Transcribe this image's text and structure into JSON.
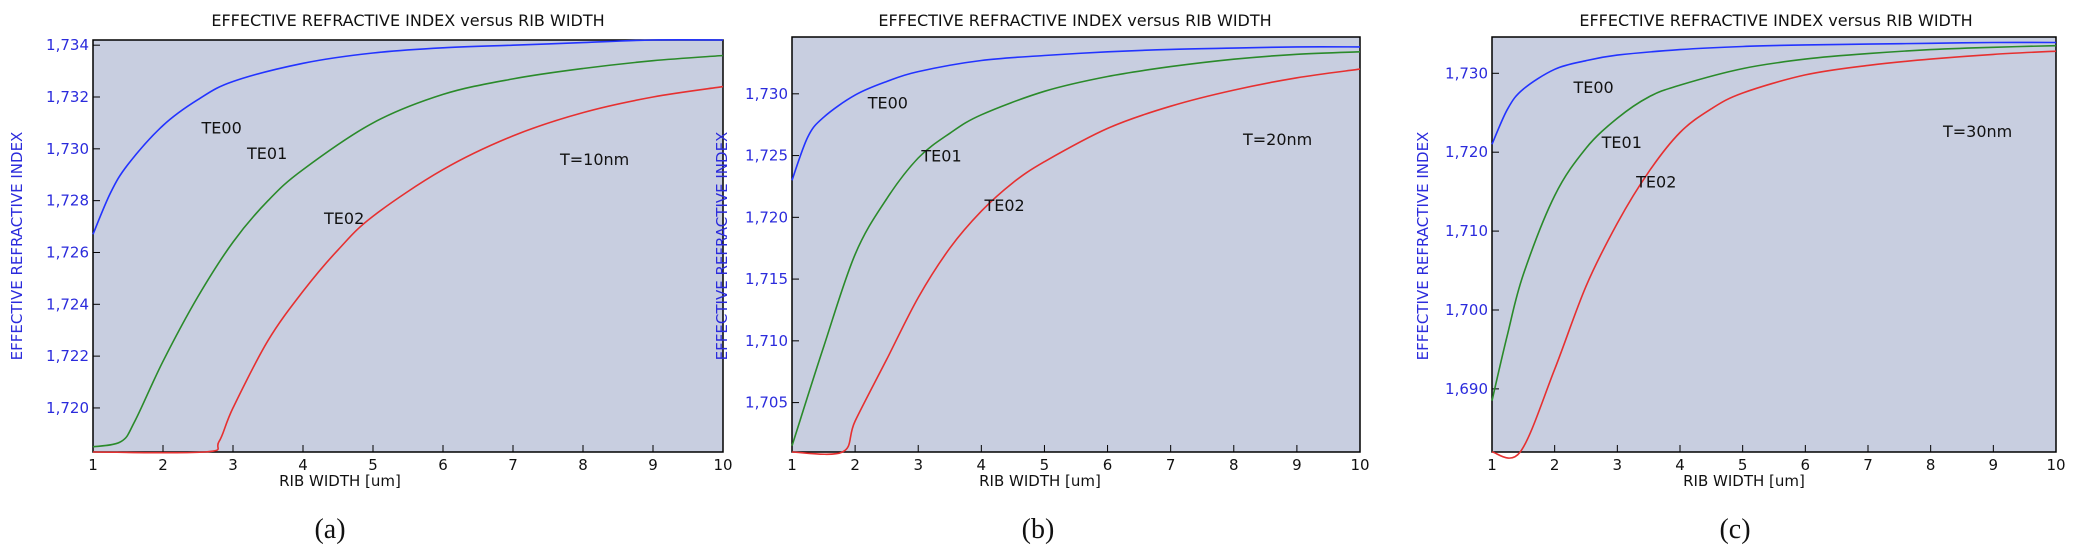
{
  "figure": {
    "captions": [
      "(a)",
      "(b)",
      "(c)"
    ]
  },
  "chart_data": [
    {
      "type": "line",
      "title": "EFFECTIVE REFRACTIVE INDEX versus RIB WIDTH",
      "xlabel": "RIB WIDTH [um]",
      "ylabel": "EFFECTIVE REFRACTIVE INDEX",
      "annotation": "T=10nm",
      "xlim": [
        1,
        10
      ],
      "ylim": [
        1.7183,
        1.7342
      ],
      "yticks": [
        1.72,
        1.722,
        1.724,
        1.726,
        1.728,
        1.73,
        1.732,
        1.734
      ],
      "ytick_labels": [
        "1,720",
        "1,722",
        "1,724",
        "1,726",
        "1,728",
        "1,730",
        "1,732",
        "1,734"
      ],
      "xticks": [
        "1",
        "2",
        "3",
        "4",
        "5",
        "6",
        "7",
        "8",
        "9",
        "10"
      ],
      "grid": false,
      "legend": "none",
      "series": [
        {
          "name": "TE00",
          "color": "#2233ff",
          "label_at": [
            2.55,
            1.7306
          ],
          "x": [
            1,
            1.25,
            1.5,
            2,
            2.5,
            3,
            4,
            5,
            6,
            7,
            8,
            9,
            10
          ],
          "y": [
            1.7267,
            1.7283,
            1.7294,
            1.7309,
            1.7319,
            1.7326,
            1.7333,
            1.7337,
            1.7339,
            1.734,
            1.7341,
            1.7342,
            1.7342
          ]
        },
        {
          "name": "TE01",
          "color": "#2a8a2a",
          "label_at": [
            3.2,
            1.7296
          ],
          "x": [
            1,
            1.4,
            1.6,
            2,
            2.5,
            3,
            3.5,
            4,
            5,
            6,
            7,
            8,
            9,
            10
          ],
          "y": [
            1.7185,
            1.7187,
            1.7195,
            1.7218,
            1.7243,
            1.7264,
            1.728,
            1.7292,
            1.731,
            1.7321,
            1.7327,
            1.7331,
            1.7334,
            1.7336
          ]
        },
        {
          "name": "TE02",
          "color": "#e63030",
          "label_at": [
            4.3,
            1.7271
          ],
          "x": [
            1,
            2.6,
            2.8,
            3,
            3.5,
            4,
            4.5,
            5,
            6,
            7,
            8,
            9,
            10
          ],
          "y": [
            1.7183,
            1.7183,
            1.7187,
            1.72,
            1.7226,
            1.7245,
            1.7261,
            1.7274,
            1.7292,
            1.7305,
            1.7314,
            1.732,
            1.7324
          ]
        }
      ]
    },
    {
      "type": "line",
      "title": "EFFECTIVE REFRACTIVE INDEX versus RIB WIDTH",
      "xlabel": "RIB WIDTH [um]",
      "ylabel": "EFFECTIVE REFRACTIVE INDEX",
      "annotation": "T=20nm",
      "xlim": [
        1,
        10
      ],
      "ylim": [
        1.701,
        1.7346
      ],
      "yticks": [
        1.705,
        1.71,
        1.715,
        1.72,
        1.725,
        1.73
      ],
      "ytick_labels": [
        "1,705",
        "1,710",
        "1,715",
        "1,720",
        "1,725",
        "1,730"
      ],
      "xticks": [
        "1",
        "2",
        "3",
        "4",
        "5",
        "6",
        "7",
        "8",
        "9",
        "10"
      ],
      "grid": false,
      "legend": "none",
      "series": [
        {
          "name": "TE00",
          "color": "#2233ff",
          "label_at": [
            2.2,
            1.7288
          ],
          "x": [
            1,
            1.25,
            1.5,
            2,
            2.5,
            3,
            4,
            5,
            6,
            7,
            8,
            9,
            10
          ],
          "y": [
            1.723,
            1.7265,
            1.7281,
            1.7299,
            1.731,
            1.7318,
            1.7327,
            1.7331,
            1.7334,
            1.7336,
            1.7337,
            1.7338,
            1.7338
          ]
        },
        {
          "name": "TE01",
          "color": "#2a8a2a",
          "label_at": [
            3.05,
            1.7245
          ],
          "x": [
            1,
            1.5,
            2,
            2.5,
            3,
            3.5,
            4,
            5,
            6,
            7,
            8,
            9,
            10
          ],
          "y": [
            1.7015,
            1.7095,
            1.717,
            1.7215,
            1.7248,
            1.7268,
            1.7283,
            1.7302,
            1.7314,
            1.7322,
            1.7328,
            1.7332,
            1.7334
          ]
        },
        {
          "name": "TE02",
          "color": "#e63030",
          "label_at": [
            4.05,
            1.7205
          ],
          "x": [
            1,
            1.8,
            2,
            2.5,
            3,
            3.5,
            4,
            4.5,
            5,
            6,
            7,
            8,
            9,
            10
          ],
          "y": [
            1.701,
            1.701,
            1.7035,
            1.7085,
            1.7135,
            1.7175,
            1.7205,
            1.7228,
            1.7245,
            1.7272,
            1.729,
            1.7303,
            1.7313,
            1.732
          ]
        }
      ]
    },
    {
      "type": "line",
      "title": "EFFECTIVE REFRACTIVE INDEX versus RIB WIDTH",
      "xlabel": "RIB WIDTH [um]",
      "ylabel": "EFFECTIVE REFRACTIVE INDEX",
      "annotation": "T=30nm",
      "xlim": [
        1,
        10
      ],
      "ylim": [
        1.682,
        1.7346
      ],
      "yticks": [
        1.69,
        1.7,
        1.71,
        1.72,
        1.73
      ],
      "ytick_labels": [
        "1,690",
        "1,700",
        "1,710",
        "1,720",
        "1,730"
      ],
      "xticks": [
        "1",
        "2",
        "3",
        "4",
        "5",
        "6",
        "7",
        "8",
        "9",
        "10"
      ],
      "grid": false,
      "legend": "none",
      "series": [
        {
          "name": "TE00",
          "color": "#2233ff",
          "label_at": [
            2.3,
            1.7275
          ],
          "x": [
            1,
            1.25,
            1.5,
            2,
            2.5,
            3,
            4,
            5,
            6,
            7,
            8,
            9,
            10
          ],
          "y": [
            1.721,
            1.7255,
            1.728,
            1.7305,
            1.7316,
            1.7323,
            1.733,
            1.7334,
            1.7336,
            1.7337,
            1.7338,
            1.7339,
            1.7339
          ]
        },
        {
          "name": "TE01",
          "color": "#2a8a2a",
          "label_at": [
            2.75,
            1.7205
          ],
          "x": [
            1,
            1.25,
            1.5,
            2,
            2.5,
            3,
            3.5,
            4,
            5,
            6,
            7,
            8,
            9,
            10
          ],
          "y": [
            1.6885,
            1.697,
            1.7045,
            1.7145,
            1.7205,
            1.7243,
            1.727,
            1.7285,
            1.7306,
            1.7318,
            1.7325,
            1.733,
            1.7333,
            1.7335
          ]
        },
        {
          "name": "TE02",
          "color": "#e63030",
          "label_at": [
            3.3,
            1.7155
          ],
          "x": [
            1,
            1.45,
            2,
            2.5,
            3,
            3.5,
            4,
            4.5,
            5,
            6,
            7,
            8,
            9,
            10
          ],
          "y": [
            1.682,
            1.682,
            1.6925,
            1.703,
            1.711,
            1.7175,
            1.7225,
            1.7255,
            1.7275,
            1.7298,
            1.731,
            1.7318,
            1.7324,
            1.7328
          ]
        }
      ]
    }
  ]
}
